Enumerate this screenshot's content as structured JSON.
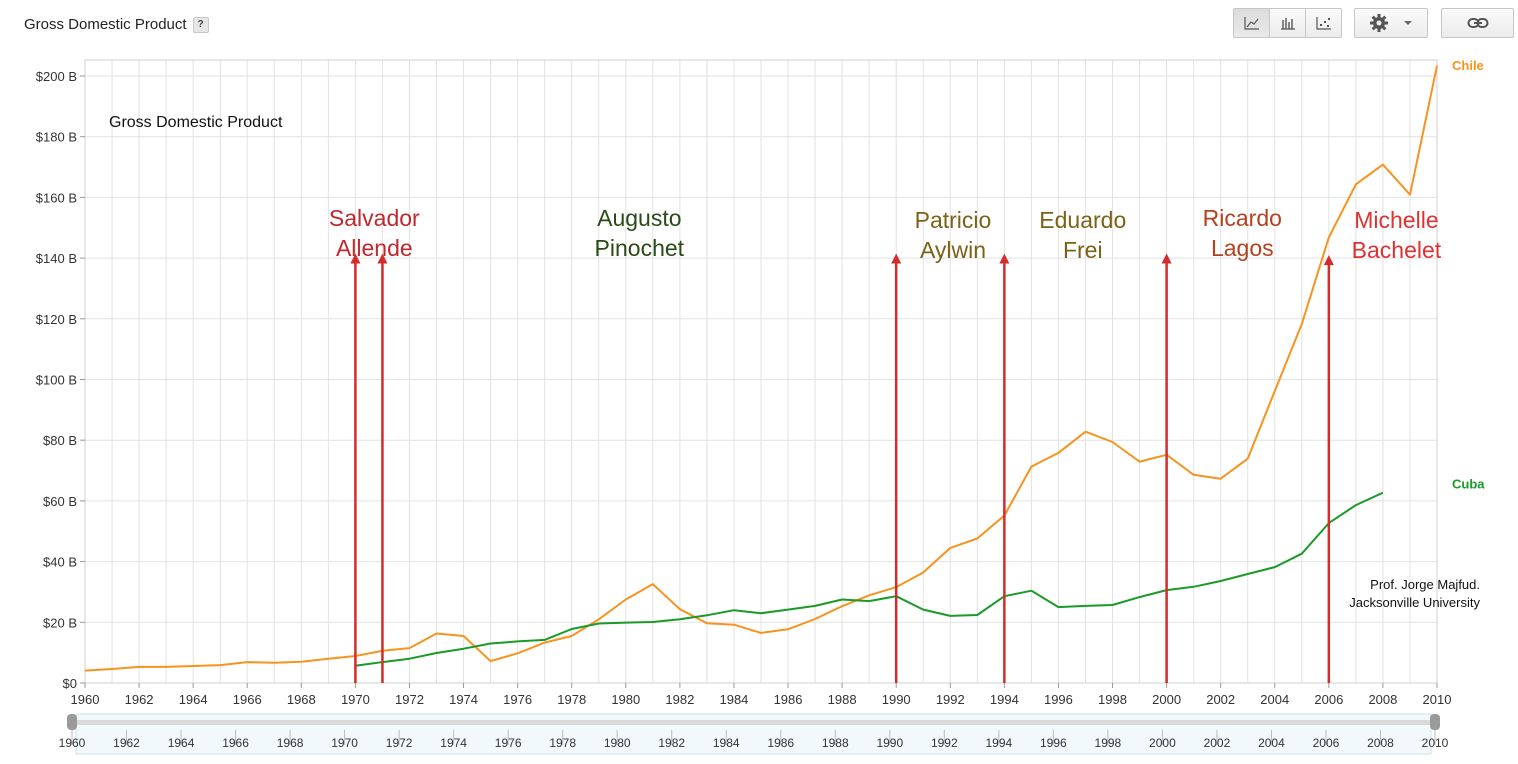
{
  "header": {
    "title": "Gross Domestic Product",
    "help_label": "?"
  },
  "toolbar": {
    "chart_types": [
      "line-chart-icon",
      "bar-chart-icon",
      "scatter-chart-icon"
    ],
    "active_chart_type": "line",
    "settings_icon": "gear-icon",
    "dropdown_icon": "caret-down-icon",
    "link_icon": "link-icon"
  },
  "chart_data": {
    "type": "line",
    "inner_title": "Gross Domestic Product",
    "xlim": [
      1960,
      2010
    ],
    "ylim": [
      0,
      200
    ],
    "x_ticks": [
      1960,
      1962,
      1964,
      1966,
      1968,
      1970,
      1972,
      1974,
      1976,
      1978,
      1980,
      1982,
      1984,
      1986,
      1988,
      1990,
      1992,
      1994,
      1996,
      1998,
      2000,
      2002,
      2004,
      2006,
      2008,
      2010
    ],
    "y_ticks": [
      0,
      20,
      40,
      60,
      80,
      100,
      120,
      140,
      160,
      180,
      200
    ],
    "y_tick_labels": [
      "$0",
      "$20 B",
      "$40 B",
      "$60 B",
      "$80 B",
      "$100 B",
      "$120 B",
      "$140 B",
      "$160 B",
      "$180 B",
      "$200 B"
    ],
    "grid": true,
    "series": [
      {
        "name": "Chile",
        "color": "#f7931e",
        "x": [
          1960,
          1961,
          1962,
          1963,
          1964,
          1965,
          1966,
          1967,
          1968,
          1969,
          1970,
          1971,
          1972,
          1973,
          1974,
          1975,
          1976,
          1977,
          1978,
          1979,
          1980,
          1981,
          1982,
          1983,
          1984,
          1985,
          1986,
          1987,
          1988,
          1989,
          1990,
          1991,
          1992,
          1993,
          1994,
          1995,
          1996,
          1997,
          1998,
          1999,
          2000,
          2001,
          2002,
          2003,
          2004,
          2005,
          2006,
          2007,
          2008,
          2009,
          2010
        ],
        "values": [
          4.1,
          4.6,
          5.3,
          5.3,
          5.6,
          5.9,
          6.9,
          6.7,
          7.0,
          8.0,
          8.9,
          10.6,
          11.5,
          16.3,
          15.5,
          7.2,
          9.8,
          13.3,
          15.5,
          21.0,
          27.5,
          32.6,
          24.3,
          19.7,
          19.2,
          16.5,
          17.7,
          21.1,
          25.3,
          28.9,
          31.6,
          36.4,
          44.5,
          47.6,
          55.2,
          71.3,
          75.8,
          82.8,
          79.4,
          72.9,
          75.2,
          68.6,
          67.3,
          73.9,
          96.2,
          118.3,
          146.8,
          164.3,
          170.8,
          160.9,
          203.4
        ]
      },
      {
        "name": "Cuba",
        "color": "#1a9a27",
        "x": [
          1970,
          1971,
          1972,
          1973,
          1974,
          1975,
          1976,
          1977,
          1978,
          1979,
          1980,
          1981,
          1982,
          1983,
          1984,
          1985,
          1986,
          1987,
          1988,
          1989,
          1990,
          1991,
          1992,
          1993,
          1994,
          1995,
          1996,
          1997,
          1998,
          1999,
          2000,
          2001,
          2002,
          2003,
          2004,
          2005,
          2006,
          2007,
          2008
        ],
        "values": [
          5.7,
          6.9,
          8.0,
          9.9,
          11.3,
          13.0,
          13.7,
          14.2,
          17.8,
          19.6,
          19.9,
          20.1,
          21.0,
          22.3,
          24.0,
          23.0,
          24.2,
          25.4,
          27.5,
          27.0,
          28.6,
          24.2,
          22.1,
          22.4,
          28.6,
          30.4,
          25.0,
          25.4,
          25.7,
          28.3,
          30.6,
          31.7,
          33.6,
          35.9,
          38.2,
          42.6,
          52.7,
          58.6,
          62.7
        ]
      }
    ],
    "annotations": [
      {
        "lines": [
          "Salvador",
          "Allende"
        ],
        "x": 1970.7,
        "y": 150.5,
        "color": "#c1272d"
      },
      {
        "lines": [
          "Augusto",
          "Pinochet"
        ],
        "x": 1980.5,
        "y": 150.5,
        "color": "#2a4a17"
      },
      {
        "lines": [
          "Patricio",
          "Aylwin"
        ],
        "x": 1992.1,
        "y": 150.0,
        "color": "#7d6116"
      },
      {
        "lines": [
          "Eduardo",
          "Frei"
        ],
        "x": 1996.9,
        "y": 150.0,
        "color": "#7d6116"
      },
      {
        "lines": [
          "Ricardo",
          "Lagos"
        ],
        "x": 2002.8,
        "y": 150.5,
        "color": "#b5411e"
      },
      {
        "lines": [
          "Michelle",
          "Bachelet"
        ],
        "x": 2008.5,
        "y": 150.0,
        "color": "#e03030"
      }
    ],
    "markers": [
      {
        "x": 1970.0,
        "y_top": 141.5
      },
      {
        "x": 1971.0,
        "y_top": 141.5
      },
      {
        "x": 1990.0,
        "y_top": 141.5
      },
      {
        "x": 1994.0,
        "y_top": 141.5
      },
      {
        "x": 2000.0,
        "y_top": 141.5
      },
      {
        "x": 2006.0,
        "y_top": 141.0
      }
    ],
    "marker_color": "#d42b2b",
    "notes": [
      "Prof. Jorge Majfud.",
      "Jacksonville University"
    ],
    "slider": {
      "range": [
        1960,
        2010
      ]
    }
  }
}
